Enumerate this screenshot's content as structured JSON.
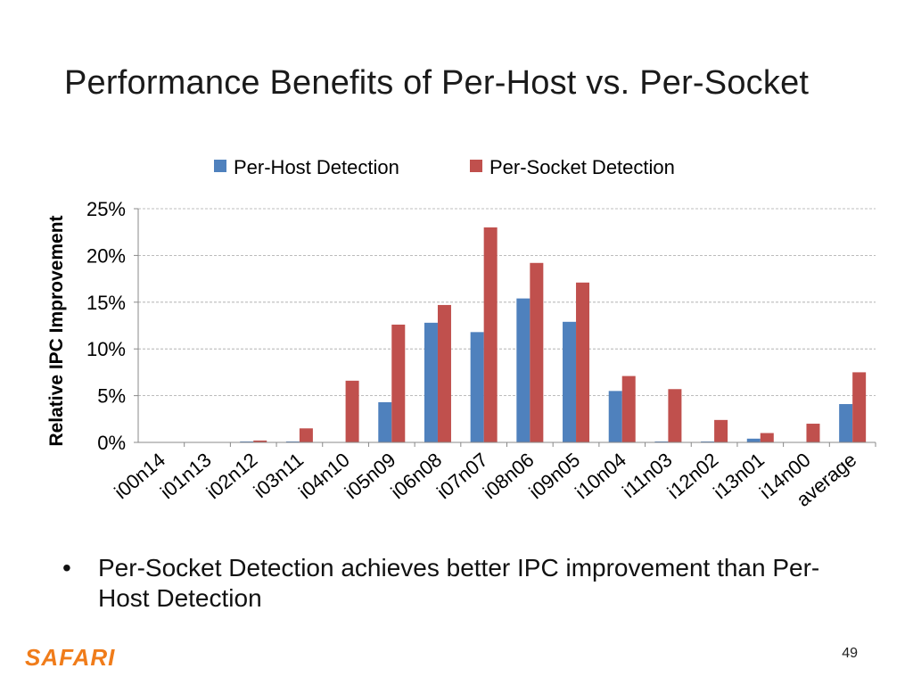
{
  "slide": {
    "title": "Performance Benefits of Per-Host vs. Per-Socket",
    "bullet_glyph": "•",
    "bullet_text": "Per-Socket Detection achieves better IPC improvement than Per-Host Detection",
    "logo": "SAFARI",
    "page_number": "49"
  },
  "chart_data": {
    "type": "bar",
    "title": "",
    "xlabel": "",
    "ylabel": "Relative IPC Improvement",
    "ylim": [
      0,
      25
    ],
    "yticks": [
      0,
      5,
      10,
      15,
      20,
      25
    ],
    "ytick_labels": [
      "0%",
      "5%",
      "10%",
      "15%",
      "20%",
      "25%"
    ],
    "grid": true,
    "legend_position": "top",
    "categories": [
      "i00n14",
      "i01n13",
      "i02n12",
      "i03n11",
      "i04n10",
      "i05n09",
      "i06n08",
      "i07n07",
      "i08n06",
      "i09n05",
      "i10n04",
      "i11n03",
      "i12n02",
      "i13n01",
      "i14n00",
      "average"
    ],
    "series": [
      {
        "name": "Per-Host Detection",
        "color": "#4f81bd",
        "values": [
          0,
          0,
          0.1,
          0.1,
          0,
          4.3,
          12.8,
          11.8,
          15.4,
          12.9,
          5.5,
          0.1,
          0.1,
          0.4,
          0,
          4.1
        ]
      },
      {
        "name": "Per-Socket Detection",
        "color": "#c0504d",
        "values": [
          0,
          0,
          0.2,
          1.5,
          6.6,
          12.6,
          14.7,
          23.0,
          19.2,
          17.1,
          7.1,
          5.7,
          2.4,
          1.0,
          2.0,
          7.5
        ]
      }
    ]
  }
}
